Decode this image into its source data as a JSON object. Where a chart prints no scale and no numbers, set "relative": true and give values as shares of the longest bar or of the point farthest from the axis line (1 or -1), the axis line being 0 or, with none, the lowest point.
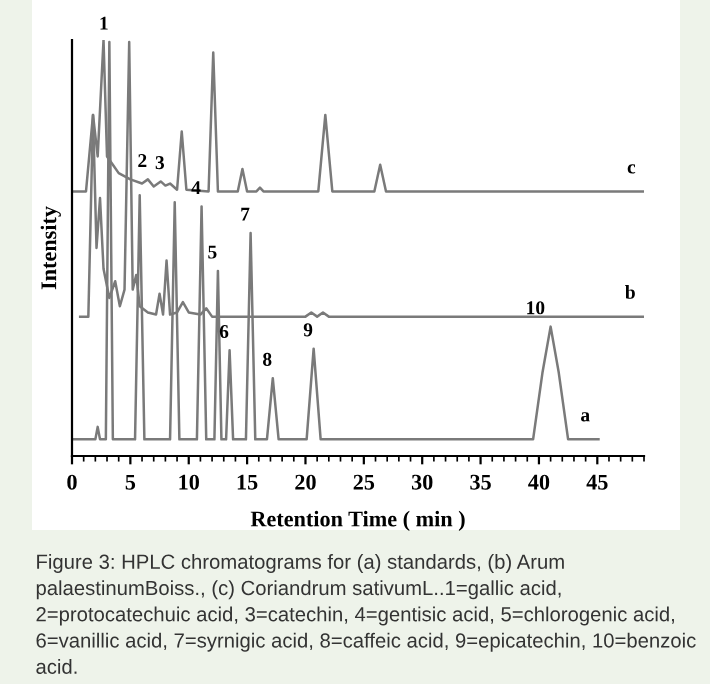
{
  "chart_data": {
    "type": "line",
    "relative": true,
    "xlabel": "Retention Time ( min )",
    "ylabel": "Intensity",
    "xlim": [
      0,
      49
    ],
    "xticks": [
      0,
      5,
      10,
      15,
      20,
      25,
      30,
      35,
      40,
      45
    ],
    "tick_labels": "x",
    "grid": false,
    "legend": false,
    "marker": "none",
    "line_style": "solid",
    "series": [
      {
        "name": "a",
        "color": "#7a7a7a",
        "x": [
          0,
          2.0,
          2.2,
          2.4,
          2.9,
          3.2,
          3.5,
          5.4,
          5.8,
          6.2,
          8.4,
          8.8,
          9.2,
          10.7,
          11.1,
          11.5,
          12.2,
          12.5,
          12.8,
          13.2,
          13.5,
          13.8,
          14.9,
          15.3,
          15.7,
          16.7,
          17.2,
          17.7,
          20.1,
          20.7,
          21.3,
          39.5,
          40.3,
          41.0,
          41.7,
          42.5,
          45.1
        ],
        "values": [
          0.04,
          0.04,
          0.07,
          0.04,
          0.04,
          0.995,
          0.04,
          0.04,
          0.627,
          0.04,
          0.04,
          0.61,
          0.04,
          0.04,
          0.6,
          0.04,
          0.04,
          0.445,
          0.04,
          0.04,
          0.254,
          0.04,
          0.04,
          0.536,
          0.04,
          0.04,
          0.187,
          0.04,
          0.04,
          0.258,
          0.04,
          0.04,
          0.2,
          0.311,
          0.2,
          0.04,
          0.04
        ]
      },
      {
        "name": "b",
        "color": "#7a7a7a",
        "x": [
          0.7,
          1.4,
          1.8,
          2.1,
          2.4,
          2.7,
          3.2,
          3.7,
          4.1,
          4.5,
          4.9,
          5.2,
          5.5,
          5.8,
          6.5,
          7.2,
          7.5,
          7.8,
          8.1,
          8.4,
          9.0,
          9.5,
          10.0,
          11.0,
          11.5,
          12.0,
          20.0,
          20.5,
          21.0,
          21.5,
          22.0,
          22.5,
          49
        ],
        "values": [
          0.335,
          0.335,
          0.82,
          0.5,
          0.62,
          0.45,
          0.38,
          0.42,
          0.36,
          0.4,
          0.995,
          0.4,
          0.435,
          0.36,
          0.345,
          0.34,
          0.39,
          0.34,
          0.47,
          0.34,
          0.345,
          0.37,
          0.345,
          0.34,
          0.355,
          0.335,
          0.335,
          0.345,
          0.335,
          0.345,
          0.335,
          0.335,
          0.335
        ]
      },
      {
        "name": "c",
        "color": "#7a7a7a",
        "x": [
          0,
          1.2,
          1.8,
          2.2,
          2.7,
          3.0,
          3.5,
          4.0,
          5.0,
          6.0,
          6.5,
          7.0,
          7.6,
          8.0,
          8.4,
          9.0,
          9.4,
          9.8,
          11.7,
          12.1,
          12.5,
          14.2,
          14.6,
          15.0,
          15.8,
          16.1,
          16.4,
          21.1,
          21.7,
          22.3,
          25.9,
          26.4,
          26.9,
          49
        ],
        "values": [
          0.636,
          0.636,
          0.82,
          0.72,
          1.0,
          0.72,
          0.7,
          0.68,
          0.665,
          0.655,
          0.665,
          0.648,
          0.66,
          0.65,
          0.655,
          0.64,
          0.78,
          0.64,
          0.636,
          0.97,
          0.636,
          0.636,
          0.69,
          0.636,
          0.636,
          0.645,
          0.636,
          0.636,
          0.82,
          0.636,
          0.636,
          0.7,
          0.636,
          0.636
        ]
      }
    ],
    "annotations": [
      {
        "text": "1",
        "x": 3.2,
        "y": 0.995
      },
      {
        "text": "2",
        "x": 6.5,
        "y": 0.665
      },
      {
        "text": "3",
        "x": 8.0,
        "y": 0.66
      },
      {
        "text": "4",
        "x": 11.1,
        "y": 0.6
      },
      {
        "text": "5",
        "x": 12.5,
        "y": 0.445
      },
      {
        "text": "6",
        "x": 13.5,
        "y": 0.254
      },
      {
        "text": "7",
        "x": 15.3,
        "y": 0.536
      },
      {
        "text": "8",
        "x": 17.2,
        "y": 0.187
      },
      {
        "text": "9",
        "x": 20.7,
        "y": 0.258
      },
      {
        "text": "10",
        "x": 41.0,
        "y": 0.311
      },
      "Figure 3: HPLC chromatograms for (a) standards, (b) Arum palaestinumBoiss., (c) Coriandrum sativumL..1=gallic acid, 2=protocatechuic acid, 3=catechin, 4=gentisic acid, 5=chlorogenic acid, 6=vanillic acid, 7=syrnigic acid, 8=caffeic acid, 9=epicatechin, 10=benzoic acid."
    ]
  }
}
